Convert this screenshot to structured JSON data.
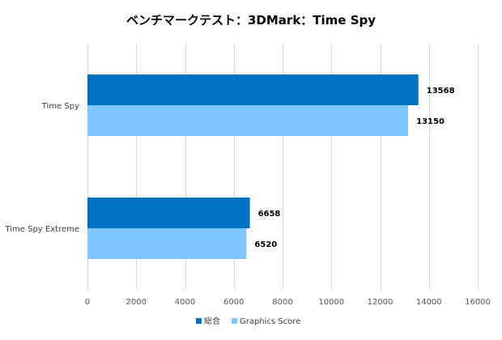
{
  "chart_data": {
    "type": "bar",
    "orientation": "horizontal",
    "title": "ベンチマークテスト：3DMark：Time Spy",
    "categories": [
      "Time Spy",
      "Time Spy Extreme"
    ],
    "series": [
      {
        "name": "総合",
        "color": "#0070c0",
        "values": [
          13568,
          6658
        ]
      },
      {
        "name": "Graphics Score",
        "color": "#7fc8ff",
        "values": [
          13150,
          6520
        ]
      }
    ],
    "xlim": [
      0,
      16000
    ],
    "xticks": [
      0,
      2000,
      4000,
      6000,
      8000,
      10000,
      12000,
      14000,
      16000
    ],
    "grid": true,
    "legend": "bottom",
    "xlabel": "",
    "ylabel": ""
  }
}
